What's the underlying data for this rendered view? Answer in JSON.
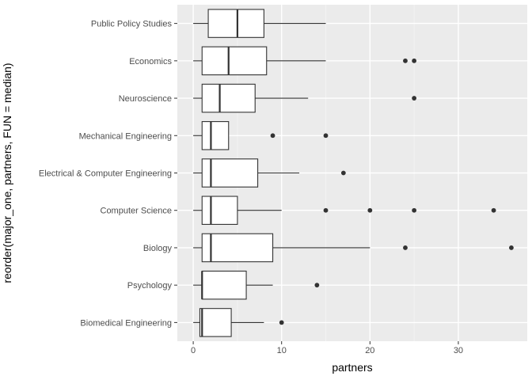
{
  "chart_data": {
    "type": "boxplot",
    "orientation": "horizontal",
    "xlabel": "partners",
    "ylabel": "reorder(major_one, partners, FUN = median)",
    "xlim": [
      -1.8,
      37.8
    ],
    "x_ticks": [
      0,
      10,
      20,
      30
    ],
    "grid": true,
    "background": "#EBEBEB",
    "grid_major_color": "#FFFFFF",
    "box_fill": "#FFFFFF",
    "line_color": "#333333",
    "categories": [
      "Public Policy Studies",
      "Economics",
      "Neuroscience",
      "Mechanical Engineering",
      "Electrical & Computer Engineering",
      "Computer Science",
      "Biology",
      "Psychology",
      "Biomedical Engineering"
    ],
    "boxes": [
      {
        "category": "Public Policy Studies",
        "whisker_low": 0,
        "q1": 1.7,
        "median": 5,
        "q3": 8,
        "whisker_high": 15,
        "outliers": []
      },
      {
        "category": "Economics",
        "whisker_low": 0,
        "q1": 1,
        "median": 4,
        "q3": 8.3,
        "whisker_high": 15,
        "outliers": [
          24,
          25
        ]
      },
      {
        "category": "Neuroscience",
        "whisker_low": 0,
        "q1": 1,
        "median": 3,
        "q3": 7,
        "whisker_high": 13,
        "outliers": [
          25
        ]
      },
      {
        "category": "Mechanical Engineering",
        "whisker_low": 0,
        "q1": 1,
        "median": 2,
        "q3": 4,
        "whisker_high": 4,
        "outliers": [
          9,
          15
        ]
      },
      {
        "category": "Electrical & Computer Engineering",
        "whisker_low": 0,
        "q1": 1,
        "median": 2,
        "q3": 7.3,
        "whisker_high": 12,
        "outliers": [
          17
        ]
      },
      {
        "category": "Computer Science",
        "whisker_low": 0,
        "q1": 1,
        "median": 2,
        "q3": 5,
        "whisker_high": 10,
        "outliers": [
          15,
          20,
          25,
          34
        ]
      },
      {
        "category": "Biology",
        "whisker_low": 0,
        "q1": 1,
        "median": 2,
        "q3": 9,
        "whisker_high": 20,
        "outliers": [
          24,
          36
        ]
      },
      {
        "category": "Psychology",
        "whisker_low": 0,
        "q1": 1,
        "median": 1,
        "q3": 6,
        "whisker_high": 9,
        "outliers": [
          14
        ]
      },
      {
        "category": "Biomedical Engineering",
        "whisker_low": 0,
        "q1": 0.75,
        "median": 1,
        "q3": 4.3,
        "whisker_high": 8,
        "outliers": [
          10
        ]
      }
    ]
  }
}
